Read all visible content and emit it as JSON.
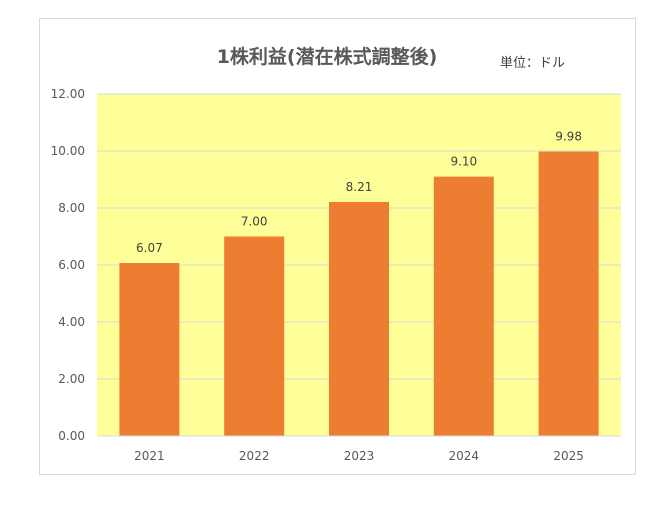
{
  "chart_data": {
    "type": "bar",
    "title": "1株利益(潜在株式調整後)",
    "unit_label": "単位：ドル",
    "categories": [
      "2021",
      "2022",
      "2023",
      "2024",
      "2025"
    ],
    "values": [
      6.07,
      7.0,
      8.21,
      9.1,
      9.98
    ],
    "value_labels": [
      "6.07",
      "7.00",
      "8.21",
      "9.10",
      "9.98"
    ],
    "y_ticks": [
      "0.00",
      "2.00",
      "4.00",
      "6.00",
      "8.00",
      "10.00",
      "12.00"
    ],
    "ylim": [
      0,
      12
    ],
    "grid": true,
    "legend": "none",
    "colors": {
      "bar": "#ed7d31",
      "plot_background": "#ffff99",
      "gridline": "#d9d9d9"
    }
  }
}
